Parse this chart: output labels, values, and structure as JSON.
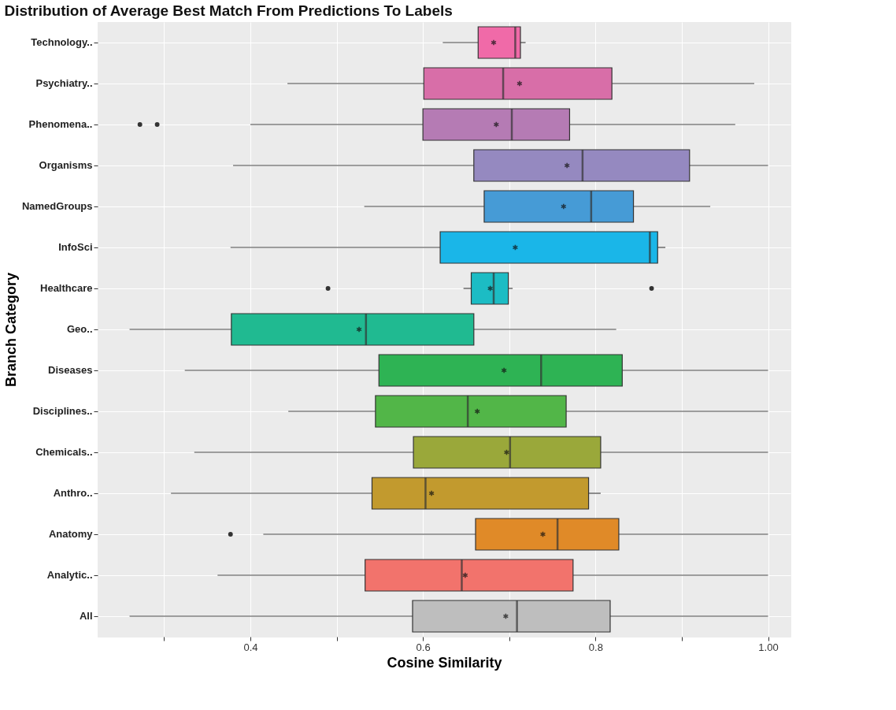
{
  "chart_data": {
    "type": "box",
    "title": "Distribution of Average Best Match From Predictions To Labels",
    "xlabel": "Cosine Similarity",
    "ylabel": "Branch Category",
    "orientation": "horizontal",
    "categories": [
      "Technology..",
      "Psychiatry..",
      "Phenomena..",
      "Organisms",
      "NamedGroups",
      "InfoSci",
      "Healthcare",
      "Geo..",
      "Diseases",
      "Disciplines..",
      "Chemicals..",
      "Anthro..",
      "Anatomy",
      "Analytic..",
      "All"
    ],
    "colors": [
      "#f06aa8",
      "#d86ea8",
      "#b57bb4",
      "#9589c0",
      "#469bd6",
      "#1ab6e8",
      "#1cbcc4",
      "#20ba91",
      "#2eb354",
      "#52b648",
      "#9aa83a",
      "#c29a2e",
      "#e08a28",
      "#f2736c",
      "#bebebe"
    ],
    "boxes": [
      {
        "low": 0.623,
        "q1": 0.664,
        "median": 0.707,
        "q3": 0.713,
        "high": 0.719,
        "mean": 0.682
      },
      {
        "low": 0.443,
        "q1": 0.601,
        "median": 0.693,
        "q3": 0.819,
        "high": 0.984,
        "mean": 0.712
      },
      {
        "low": 0.4,
        "q1": 0.6,
        "median": 0.703,
        "q3": 0.77,
        "high": 0.962,
        "mean": 0.685,
        "outliers": [
          0.272,
          0.292
        ]
      },
      {
        "low": 0.38,
        "q1": 0.659,
        "median": 0.785,
        "q3": 0.909,
        "high": 1.0,
        "mean": 0.767
      },
      {
        "low": 0.532,
        "q1": 0.671,
        "median": 0.795,
        "q3": 0.844,
        "high": 0.933,
        "mean": 0.763
      },
      {
        "low": 0.377,
        "q1": 0.62,
        "median": 0.863,
        "q3": 0.872,
        "high": 0.881,
        "mean": 0.707
      },
      {
        "low": 0.647,
        "q1": 0.656,
        "median": 0.682,
        "q3": 0.699,
        "high": 0.704,
        "mean": 0.678,
        "outliers": [
          0.49,
          0.865
        ]
      },
      {
        "low": 0.26,
        "q1": 0.378,
        "median": 0.534,
        "q3": 0.659,
        "high": 0.824,
        "mean": 0.526
      },
      {
        "low": 0.324,
        "q1": 0.549,
        "median": 0.737,
        "q3": 0.831,
        "high": 1.0,
        "mean": 0.694
      },
      {
        "low": 0.444,
        "q1": 0.545,
        "median": 0.652,
        "q3": 0.766,
        "high": 1.0,
        "mean": 0.663
      },
      {
        "low": 0.335,
        "q1": 0.589,
        "median": 0.701,
        "q3": 0.806,
        "high": 1.0,
        "mean": 0.697
      },
      {
        "low": 0.308,
        "q1": 0.541,
        "median": 0.603,
        "q3": 0.792,
        "high": 0.806,
        "mean": 0.61
      },
      {
        "low": 0.415,
        "q1": 0.661,
        "median": 0.756,
        "q3": 0.827,
        "high": 1.0,
        "mean": 0.739,
        "outliers": [
          0.377
        ]
      },
      {
        "low": 0.362,
        "q1": 0.533,
        "median": 0.645,
        "q3": 0.774,
        "high": 1.0,
        "mean": 0.649
      },
      {
        "low": 0.26,
        "q1": 0.588,
        "median": 0.709,
        "q3": 0.817,
        "high": 1.0,
        "mean": 0.696
      }
    ],
    "xlim": [
      0.223,
      1.026
    ],
    "xticks": [
      {
        "value": 0.3,
        "label": null
      },
      0.4,
      {
        "value": 0.5,
        "label": null
      },
      0.6,
      {
        "value": 0.7,
        "label": null
      },
      0.8,
      {
        "value": 0.9,
        "label": null
      },
      {
        "value": 1.0,
        "label": "1.00"
      }
    ],
    "grid": true,
    "marker": "star"
  }
}
